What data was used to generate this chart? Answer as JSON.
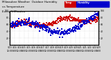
{
  "title_line1": "Milwaukee Weather  Outdoor Humidity",
  "title_line2": "vs Temperature",
  "title_line3": "Every 5 Minutes",
  "bg_color": "#d8d8d8",
  "plot_bg_color": "#ffffff",
  "humidity_color": "#0000cc",
  "temp_color": "#cc0000",
  "legend_temp_color": "#cc0000",
  "legend_humidity_color": "#0000cc",
  "legend_temp_label": "Temp",
  "legend_humidity_label": "Humidity",
  "ylim_left": [
    0,
    100
  ],
  "ylim_right": [
    0,
    100
  ],
  "yticks_left": [
    20,
    40,
    60,
    80,
    100
  ],
  "yticks_right": [
    20,
    40,
    60,
    80,
    100
  ],
  "grid_color": "#bbbbbb",
  "title_fontsize": 3.0,
  "tick_fontsize": 2.2,
  "dot_size": 0.8,
  "n_points": 288
}
